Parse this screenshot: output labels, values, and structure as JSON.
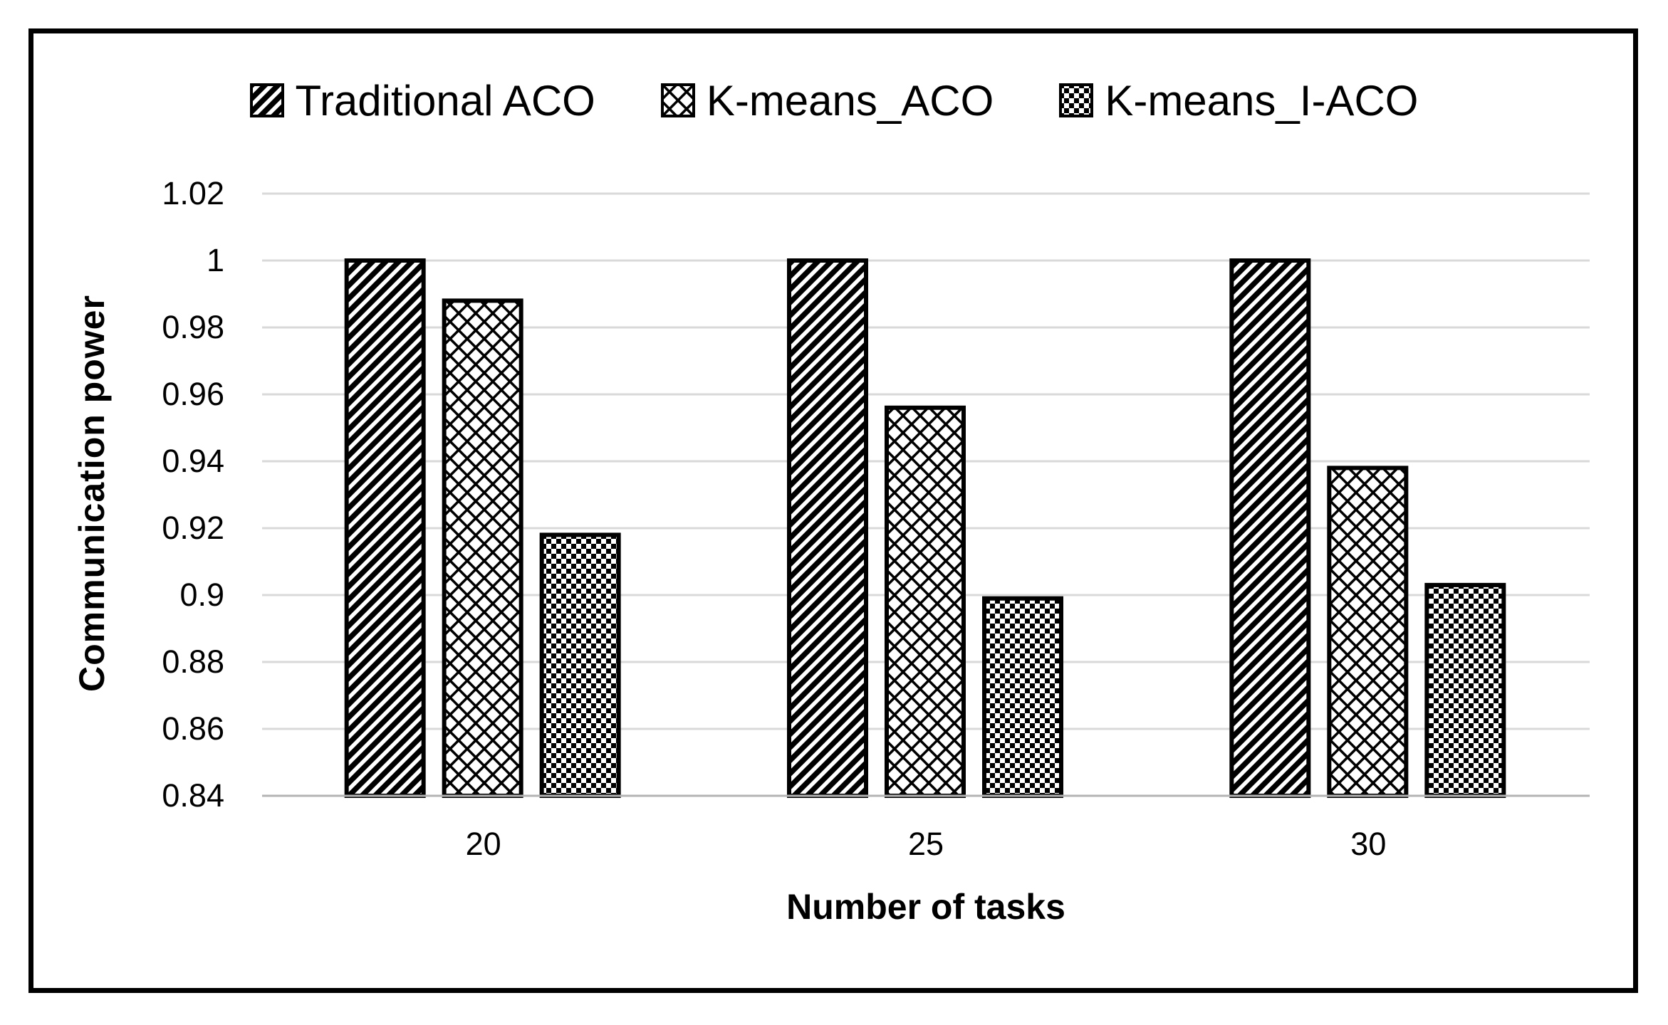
{
  "chart_data": {
    "type": "bar",
    "title": "",
    "categories": [
      "20",
      "25",
      "30"
    ],
    "series": [
      {
        "name": "Traditional ACO",
        "pattern": "diagonal-stripes",
        "values": [
          1.0,
          1.0,
          1.0
        ]
      },
      {
        "name": "K-means_ACO",
        "pattern": "diamond-crosshatch",
        "values": [
          0.988,
          0.956,
          0.938
        ]
      },
      {
        "name": "K-means_I-ACO",
        "pattern": "checkerboard",
        "values": [
          0.918,
          0.899,
          0.903
        ]
      }
    ],
    "xlabel": "Number of tasks",
    "ylabel": "Communication power",
    "ylim": [
      0.84,
      1.02
    ],
    "ytick_step": 0.02,
    "yticks": [
      "1.02",
      "1",
      "0.98",
      "0.96",
      "0.94",
      "0.92",
      "0.9",
      "0.88",
      "0.86",
      "0.84"
    ],
    "grid": "horizontal",
    "legend_position": "top-center",
    "colors": {
      "bar_pattern_foreground": "#000000",
      "bar_pattern_background": "#ffffff",
      "gridline": "#d9d9d9",
      "axis_line": "#b3b3b3",
      "text": "#000000",
      "frame_border": "#000000",
      "background": "#ffffff"
    }
  }
}
